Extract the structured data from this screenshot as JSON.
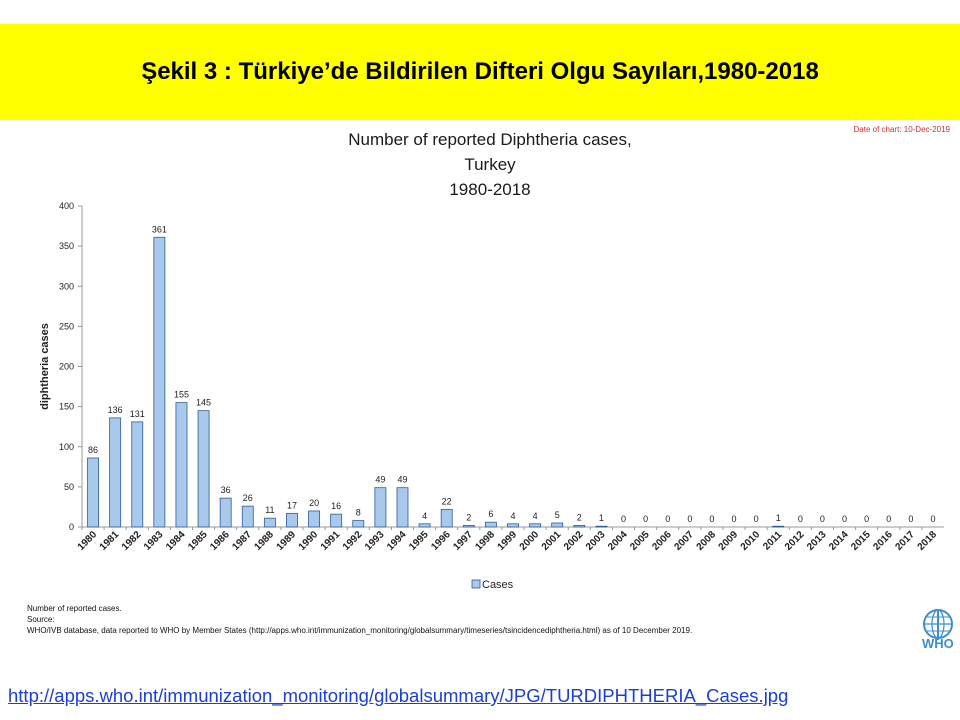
{
  "slide": {
    "banner_title": "Şekil 3 : Türkiye’de Bildirilen Difteri Olgu Sayıları,1980-2018",
    "chart_title_line1": "Number of reported Diphtheria cases,",
    "chart_title_line2": "Turkey",
    "chart_title_line3": "1980-2018",
    "date_of_chart": "Date of chart: 10-Dec-2019",
    "note_line1": "Number of reported cases.",
    "note_line2": "Source:",
    "note_line3": "WHO/IVB database, data reported to WHO by Member States (http://apps.who.int/immunization_monitoring/globalsummary/timeseries/tsincidencediphtheria.html) as of 10 December 2019.",
    "who_logo_text": "WHO",
    "source_url": "http://apps.who.int/immunization_monitoring/globalsummary/JPG/TURDIPHTHERIA_Cases.jpg"
  },
  "colors": {
    "banner_bg": "#ffff00",
    "bar_fill": "#a8c8ec",
    "bar_stroke": "#2f5c9a",
    "link": "#1a3fd8",
    "date_text": "#d32f2f",
    "who_blue": "#3b8ed0"
  },
  "chart_data": {
    "type": "bar",
    "ylabel": "diphtheria cases",
    "ylim": [
      0,
      400
    ],
    "yticks": [
      0,
      50,
      100,
      150,
      200,
      250,
      300,
      350,
      400
    ],
    "legend": {
      "label": "Cases",
      "placement": "bottom-center"
    },
    "grid": false,
    "categories": [
      "1980",
      "1981",
      "1982",
      "1983",
      "1984",
      "1985",
      "1986",
      "1987",
      "1988",
      "1989",
      "1990",
      "1991",
      "1992",
      "1993",
      "1994",
      "1995",
      "1996",
      "1997",
      "1998",
      "1999",
      "2000",
      "2001",
      "2002",
      "2003",
      "2004",
      "2005",
      "2006",
      "2007",
      "2008",
      "2009",
      "2010",
      "2011",
      "2012",
      "2013",
      "2014",
      "2015",
      "2016",
      "2017",
      "2018"
    ],
    "values": [
      86,
      136,
      131,
      361,
      155,
      145,
      36,
      26,
      11,
      17,
      20,
      16,
      8,
      49,
      49,
      4,
      22,
      2,
      6,
      4,
      4,
      5,
      2,
      1,
      0,
      0,
      0,
      0,
      0,
      0,
      0,
      1,
      0,
      0,
      0,
      0,
      0,
      0,
      0
    ]
  }
}
